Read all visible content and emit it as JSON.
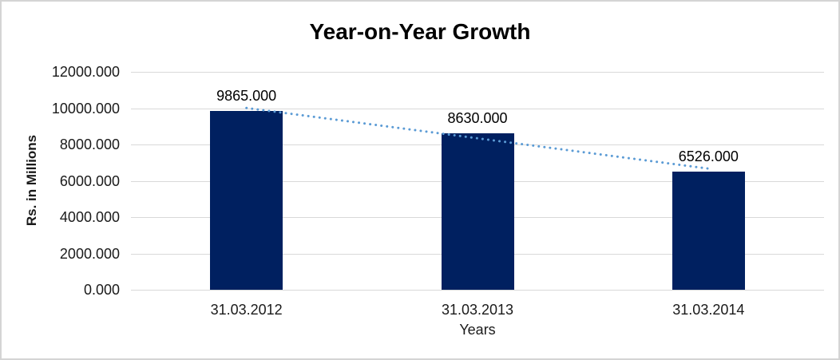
{
  "frame": {
    "background": "#ffffff",
    "border_color": "#d4d4d4"
  },
  "chart_data": {
    "type": "bar",
    "title": "Year-on-Year Growth",
    "xlabel": "Years",
    "ylabel": "Rs. in Millions",
    "categories": [
      "31.03.2012",
      "31.03.2013",
      "31.03.2014"
    ],
    "values": [
      9865,
      8630,
      6526
    ],
    "data_labels": [
      "9865.000",
      "8630.000",
      "6526.000"
    ],
    "ylim": [
      0,
      12000
    ],
    "ytick_step": 2000,
    "ytick_labels": [
      "0.000",
      "2000.000",
      "4000.000",
      "6000.000",
      "8000.000",
      "10000.000",
      "12000.000"
    ],
    "grid": true,
    "legend": "none",
    "trendline": {
      "type": "linear",
      "style": "dotted"
    },
    "colors": {
      "bar": "#002060",
      "trendline": "#5b9bd5",
      "gridline": "#d9d9d9",
      "text": "#1a1a1a"
    }
  }
}
